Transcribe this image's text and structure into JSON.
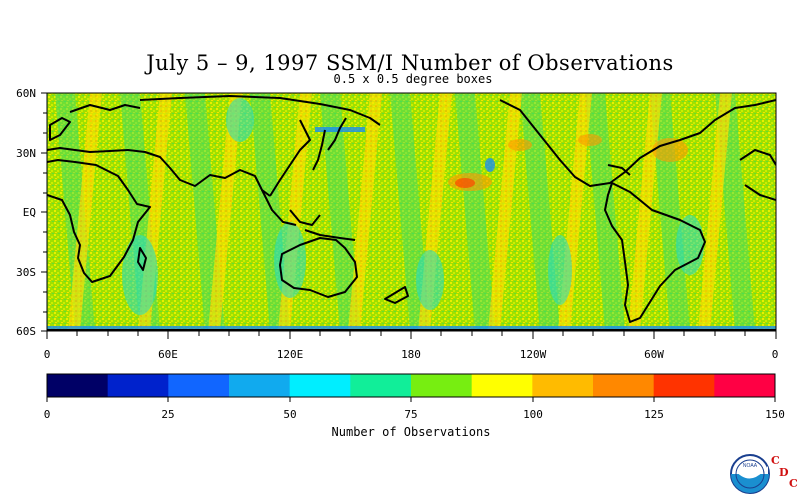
{
  "title": "July 5 – 9, 1997 SSM/I Number of Observations",
  "subtitle": "0.5 x 0.5 degree boxes",
  "lat_labels": [
    "60N",
    "30N",
    "EQ",
    "30S",
    "60S"
  ],
  "lon_labels": [
    "0",
    "60E",
    "120E",
    "180",
    "120W",
    "60W",
    "0"
  ],
  "colorbar": {
    "title": "Number of Observations",
    "tick_labels": [
      "0",
      "25",
      "50",
      "75",
      "100",
      "125",
      "150"
    ],
    "colors": [
      "#000066",
      "#0022cc",
      "#1166ff",
      "#11aaee",
      "#00eeff",
      "#11ee99",
      "#77ee11",
      "#ffff00",
      "#ffbb00",
      "#ff8800",
      "#ff3300",
      "#ff0044"
    ]
  },
  "logo": {
    "org_text": "NOAA",
    "cdc_letters": [
      "C",
      "D",
      "C"
    ]
  }
}
